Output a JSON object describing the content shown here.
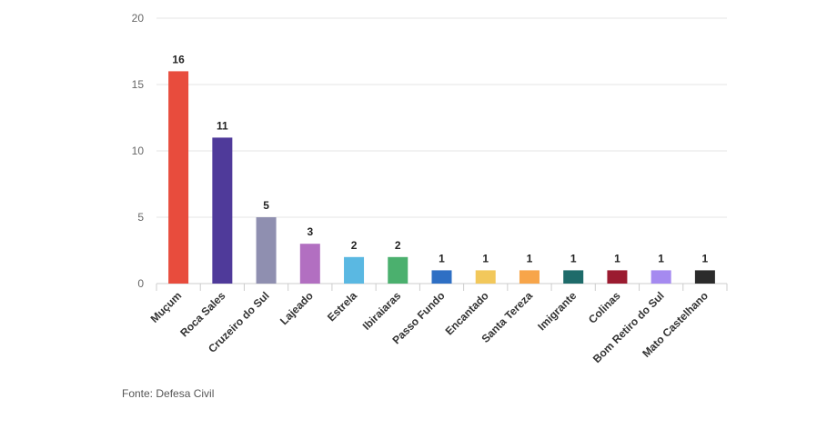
{
  "source_note": "Fonte: Defesa Civil",
  "chart_data": {
    "type": "bar",
    "categories": [
      "Muçum",
      "Roca Sales",
      "Cruzeiro do Sul",
      "Lajeado",
      "Estrela",
      "Ibiraiaras",
      "Passo Fundo",
      "Encantado",
      "Santa Tereza",
      "Imigrante",
      "Colinas",
      "Bom Retiro do Sul",
      "Mato Castelhano"
    ],
    "values": [
      16,
      11,
      5,
      3,
      2,
      2,
      1,
      1,
      1,
      1,
      1,
      1,
      1
    ],
    "data_labels": [
      "16",
      "11",
      "5",
      "3",
      "2",
      "2",
      "1",
      "1",
      "1",
      "1",
      "1",
      "1",
      "1"
    ],
    "colors": [
      "#e84c3d",
      "#4f3a9a",
      "#8f8fb0",
      "#b26fc1",
      "#5ab8e2",
      "#4bb06e",
      "#2e6fc4",
      "#f2c85b",
      "#f7a54a",
      "#1e6b6a",
      "#9b1b30",
      "#a58af0",
      "#2b2b2b"
    ],
    "yticks": [
      "0",
      "5",
      "10",
      "15",
      "20"
    ],
    "ylim": [
      0,
      20
    ],
    "title": "",
    "xlabel": "",
    "ylabel": "",
    "grid": true,
    "legend": false
  }
}
